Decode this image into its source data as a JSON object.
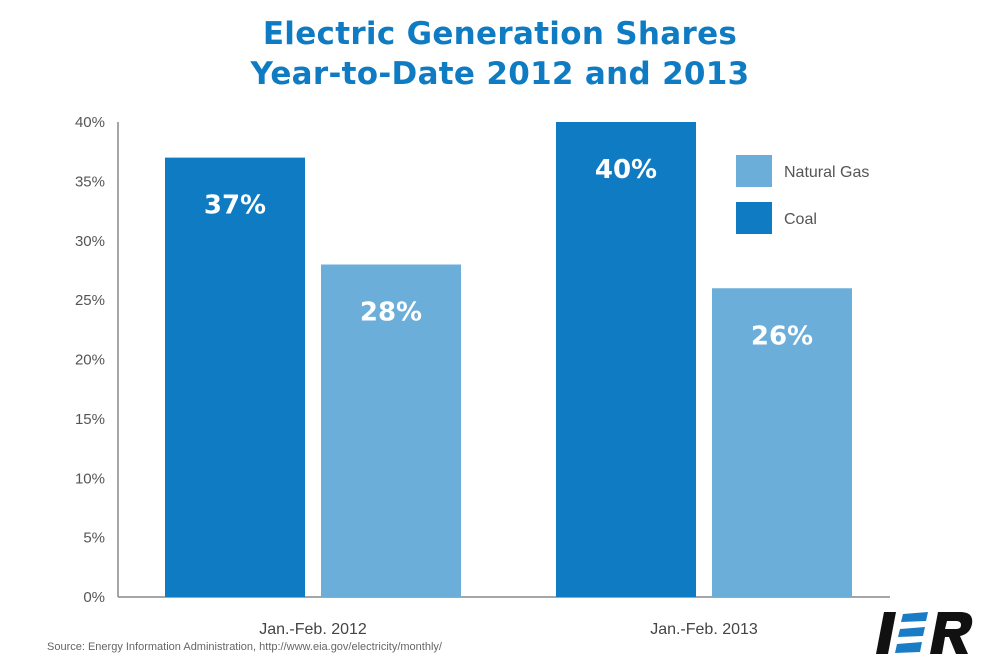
{
  "title": {
    "line1": "Electric Generation Shares",
    "line2": "Year-to-Date 2012 and 2013"
  },
  "source": "Source: Energy Information Administration, http://www.eia.gov/electricity/monthly/",
  "logo": {
    "text": "IER",
    "colors": {
      "dark": "#111111",
      "accent": "#1a7cc4"
    }
  },
  "colors": {
    "title": "#0e7bc2",
    "coal": "#0e7bc2",
    "natural_gas": "#6baed9",
    "axis": "#888888"
  },
  "chart_data": {
    "type": "bar",
    "title": "Electric Generation Shares Year-to-Date 2012 and 2013",
    "xlabel": "",
    "ylabel": "",
    "categories": [
      "Jan.-Feb. 2012",
      "Jan.-Feb. 2013"
    ],
    "series": [
      {
        "name": "Coal",
        "color": "#0e7bc2",
        "values": [
          37,
          40
        ],
        "labels": [
          "37%",
          "40%"
        ]
      },
      {
        "name": "Natural Gas",
        "color": "#6baed9",
        "values": [
          28,
          26
        ],
        "labels": [
          "28%",
          "26%"
        ]
      }
    ],
    "ylim": [
      0,
      40
    ],
    "yticks": [
      0,
      5,
      10,
      15,
      20,
      25,
      30,
      35,
      40
    ],
    "ytick_labels": [
      "0%",
      "5%",
      "10%",
      "15%",
      "20%",
      "25%",
      "30%",
      "35%",
      "40%"
    ],
    "grid": false,
    "legend": {
      "position": "top-right",
      "entries": [
        "Natural Gas",
        "Coal"
      ]
    }
  }
}
